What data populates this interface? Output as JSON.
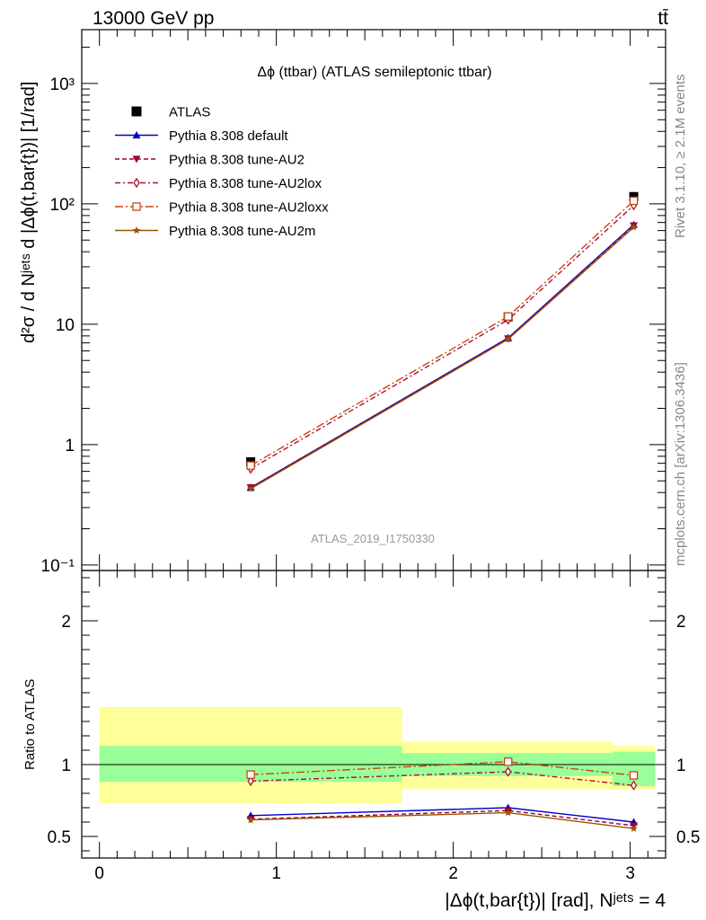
{
  "header": {
    "energy_label": "13000 GeV pp",
    "process_label": "tt̄",
    "title": "Δϕ (ttbar) (ATLAS semileptonic ttbar)",
    "watermark": "ATLAS_2019_I1750330",
    "side_label_top": "Rivet 3.1.10, ≥ 2.1M events",
    "side_label_bottom": "mcplots.cern.ch [arXiv:1306.3436]"
  },
  "axes": {
    "upper_ylabel": "d²σ / d Nʲᵉᵗˢ d |Δϕ(t,bar{t})| [1/rad]",
    "lower_ylabel": "Ratio to ATLAS",
    "xlabel": "|Δϕ(t,bar{t})| [rad], Nʲᵉᵗˢ = 4",
    "upper_yticks": [
      "10⁻¹",
      "1",
      "10",
      "10²",
      "10³"
    ],
    "lower_yticks": [
      "0.5",
      "1",
      "2"
    ],
    "xticks": [
      "0",
      "1",
      "2",
      "3"
    ]
  },
  "chart_data": {
    "type": "line",
    "title": "Δϕ (ttbar) (ATLAS semileptonic ttbar)",
    "x": [
      0.855,
      2.31,
      3.02
    ],
    "x_edges": [
      0,
      1.71,
      2.9,
      3.14159
    ],
    "xlim": [
      -0.1,
      3.2
    ],
    "upper": {
      "yscale": "log",
      "ylim": [
        0.09,
        2800
      ],
      "series": [
        {
          "name": "ATLAS",
          "color": "#000000",
          "marker": "filled-square",
          "dash": "none",
          "values": [
            0.72,
            11.5,
            115
          ]
        },
        {
          "name": "Pythia 8.308 default",
          "color": "#0000cc",
          "marker": "filled-triangle-up",
          "dash": "solid",
          "values": [
            0.44,
            7.7,
            67
          ]
        },
        {
          "name": "Pythia 8.308 tune-AU2",
          "color": "#990033",
          "marker": "filled-triangle-down",
          "dash": "dashed",
          "values": [
            0.44,
            7.6,
            66
          ]
        },
        {
          "name": "Pythia 8.308 tune-AU2lox",
          "color": "#aa1133",
          "marker": "open-diamond",
          "dash": "dashdot-short",
          "values": [
            0.63,
            10.9,
            97
          ]
        },
        {
          "name": "Pythia 8.308 tune-AU2loxx",
          "color": "#cc4411",
          "marker": "open-square",
          "dash": "dashdot",
          "values": [
            0.67,
            11.6,
            106
          ]
        },
        {
          "name": "Pythia 8.308 tune-AU2m",
          "color": "#995500",
          "marker": "star",
          "dash": "solid",
          "values": [
            0.43,
            7.5,
            64
          ]
        }
      ]
    },
    "ratio": {
      "ylim": [
        0.35,
        2.35
      ],
      "reference": 1,
      "bands": {
        "inner_color": "#99ff99",
        "outer_color": "#ffff99",
        "inner": [
          [
            0.88,
            1.13
          ],
          [
            0.92,
            1.08
          ],
          [
            0.85,
            1.09
          ]
        ],
        "outer": [
          [
            0.73,
            1.4
          ],
          [
            0.83,
            1.16
          ],
          [
            0.83,
            1.13
          ]
        ]
      },
      "series": [
        {
          "name": "Pythia 8.308 default",
          "values": [
            0.645,
            0.7,
            0.6
          ]
        },
        {
          "name": "Pythia 8.308 tune-AU2",
          "values": [
            0.62,
            0.68,
            0.575
          ]
        },
        {
          "name": "Pythia 8.308 tune-AU2lox",
          "values": [
            0.885,
            0.95,
            0.855
          ]
        },
        {
          "name": "Pythia 8.308 tune-AU2loxx",
          "values": [
            0.93,
            1.02,
            0.925
          ]
        },
        {
          "name": "Pythia 8.308 tune-AU2m",
          "values": [
            0.615,
            0.665,
            0.555
          ]
        }
      ]
    },
    "legend_position": "top-left"
  }
}
